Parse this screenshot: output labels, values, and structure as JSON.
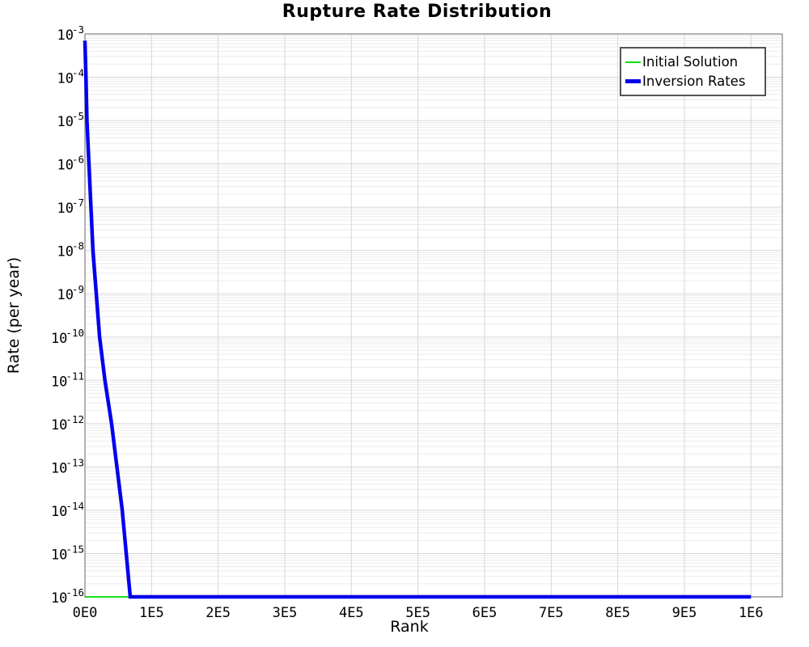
{
  "title": "Rupture Rate Distribution",
  "colors": {
    "initial_solution": "#00e000",
    "inversion_rates": "#0000ee",
    "grid_minor": "#ebebeb",
    "grid_major": "#d7d7d7",
    "plot_border": "#999999",
    "legend_border": "#545454",
    "text": "#000000",
    "background": "#ffffff"
  },
  "chart_data": {
    "type": "line",
    "title": "Rupture Rate Distribution",
    "xlabel": "Rank",
    "ylabel": "Rate (per year)",
    "x_scale": "linear",
    "y_scale": "log",
    "xlim": [
      0,
      1047000
    ],
    "ylim": [
      1e-16,
      0.001
    ],
    "grid": true,
    "legend_position": "top-right",
    "x_ticks": [
      {
        "value": 0,
        "label": "0E0"
      },
      {
        "value": 100000,
        "label": "1E5"
      },
      {
        "value": 200000,
        "label": "2E5"
      },
      {
        "value": 300000,
        "label": "3E5"
      },
      {
        "value": 400000,
        "label": "4E5"
      },
      {
        "value": 500000,
        "label": "5E5"
      },
      {
        "value": 600000,
        "label": "6E5"
      },
      {
        "value": 700000,
        "label": "7E5"
      },
      {
        "value": 800000,
        "label": "8E5"
      },
      {
        "value": 900000,
        "label": "9E5"
      },
      {
        "value": 1000000,
        "label": "1E6"
      }
    ],
    "y_ticks": {
      "base": "10",
      "exponents": [
        -3,
        -4,
        -5,
        -6,
        -7,
        -8,
        -9,
        -10,
        -11,
        -12,
        -13,
        -14,
        -15,
        -16
      ]
    },
    "series": [
      {
        "name": "Initial Solution",
        "color": "#00e000",
        "line_width": 1.8,
        "legend_swatch_height": 2,
        "points": [
          [
            0,
            1e-16
          ],
          [
            1000000,
            1e-16
          ]
        ]
      },
      {
        "name": "Inversion Rates",
        "color": "#0000ee",
        "line_width": 4.5,
        "legend_swatch_height": 5,
        "points": [
          [
            0,
            0.0007
          ],
          [
            1500,
            0.0001
          ],
          [
            3000,
            1e-05
          ],
          [
            6000,
            1e-06
          ],
          [
            9000,
            1e-07
          ],
          [
            12000,
            1e-08
          ],
          [
            17000,
            1e-09
          ],
          [
            22000,
            1e-10
          ],
          [
            30000,
            1e-11
          ],
          [
            40000,
            1e-12
          ],
          [
            48000,
            1e-13
          ],
          [
            56000,
            1e-14
          ],
          [
            62000,
            1e-15
          ],
          [
            68000,
            1e-16
          ],
          [
            1000000,
            1e-16
          ]
        ]
      }
    ]
  }
}
